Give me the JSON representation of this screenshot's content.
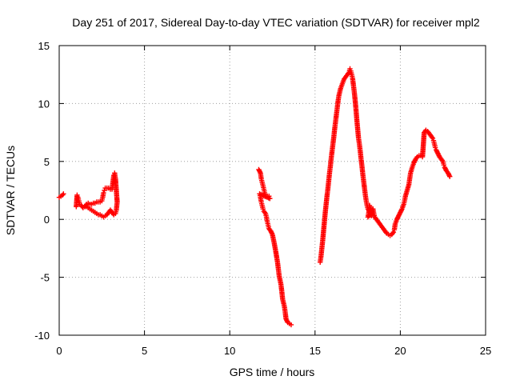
{
  "chart_data": {
    "type": "scatter",
    "title": "Day 251 of 2017, Sidereal Day-to-day VTEC variation (SDTVAR) for receiver mpl2",
    "xlabel": "GPS time / hours",
    "ylabel": "SDTVAR / TECUs",
    "xlim": [
      0,
      25
    ],
    "ylim": [
      -10,
      15
    ],
    "xticks": [
      0,
      5,
      10,
      15,
      20,
      25
    ],
    "yticks": [
      -10,
      -5,
      0,
      5,
      10,
      15
    ],
    "xtick_labels": [
      "0",
      "5",
      "10",
      "15",
      "20",
      "25"
    ],
    "ytick_labels": [
      "-10",
      "-5",
      "0",
      "5",
      "10",
      "15"
    ],
    "grid": true,
    "marker": "+",
    "color": "#ff0000",
    "series": [
      {
        "name": "SDTVAR",
        "segments": [
          [
            [
              0.0,
              1.9
            ],
            [
              0.1,
              2.0
            ],
            [
              0.2,
              2.1
            ],
            [
              0.25,
              2.2
            ]
          ],
          [
            [
              1.0,
              1.1
            ],
            [
              1.05,
              2.1
            ],
            [
              1.1,
              1.9
            ],
            [
              1.15,
              1.6
            ],
            [
              1.2,
              1.3
            ],
            [
              1.3,
              1.2
            ],
            [
              1.4,
              1.0
            ],
            [
              1.5,
              1.1
            ],
            [
              1.6,
              1.3
            ],
            [
              1.7,
              1.4
            ],
            [
              1.8,
              1.3
            ],
            [
              1.9,
              1.3
            ],
            [
              2.0,
              1.4
            ],
            [
              2.1,
              1.4
            ],
            [
              2.2,
              1.5
            ],
            [
              2.3,
              1.5
            ],
            [
              2.4,
              1.5
            ],
            [
              2.5,
              1.6
            ],
            [
              2.55,
              1.9
            ],
            [
              2.6,
              2.3
            ],
            [
              2.65,
              2.5
            ],
            [
              2.7,
              2.7
            ],
            [
              2.8,
              2.7
            ],
            [
              2.9,
              2.7
            ],
            [
              3.0,
              2.6
            ],
            [
              3.1,
              2.6
            ],
            [
              3.15,
              3.2
            ],
            [
              3.2,
              3.8
            ],
            [
              3.25,
              4.0
            ],
            [
              3.3,
              3.5
            ],
            [
              3.35,
              2.5
            ],
            [
              3.4,
              1.5
            ],
            [
              3.35,
              0.8
            ],
            [
              3.3,
              0.5
            ],
            [
              3.2,
              0.4
            ],
            [
              3.1,
              0.6
            ],
            [
              3.0,
              0.8
            ],
            [
              2.9,
              0.6
            ],
            [
              2.8,
              0.4
            ],
            [
              2.7,
              0.3
            ],
            [
              2.6,
              0.2
            ],
            [
              2.5,
              0.3
            ],
            [
              2.4,
              0.4
            ],
            [
              2.3,
              0.4
            ],
            [
              2.2,
              0.5
            ],
            [
              2.1,
              0.6
            ],
            [
              2.0,
              0.7
            ],
            [
              1.9,
              0.8
            ],
            [
              1.8,
              0.9
            ],
            [
              1.7,
              1.0
            ],
            [
              1.6,
              1.1
            ],
            [
              1.5,
              1.1
            ]
          ],
          [
            [
              11.7,
              4.3
            ],
            [
              11.8,
              4.0
            ],
            [
              11.85,
              3.5
            ],
            [
              11.9,
              3.2
            ],
            [
              11.95,
              2.9
            ],
            [
              12.0,
              2.6
            ],
            [
              12.05,
              2.3
            ],
            [
              12.1,
              2.0
            ],
            [
              12.2,
              2.0
            ],
            [
              12.3,
              2.0
            ],
            [
              12.35,
              1.8
            ],
            [
              11.75,
              2.2
            ],
            [
              11.8,
              1.9
            ],
            [
              11.85,
              1.5
            ],
            [
              11.9,
              1.2
            ],
            [
              11.95,
              0.9
            ],
            [
              12.0,
              0.7
            ],
            [
              12.1,
              0.5
            ],
            [
              12.15,
              0.2
            ],
            [
              12.2,
              -0.2
            ],
            [
              12.25,
              -0.5
            ],
            [
              12.3,
              -0.8
            ],
            [
              12.4,
              -1.0
            ],
            [
              12.5,
              -1.3
            ],
            [
              12.6,
              -2.0
            ],
            [
              12.7,
              -2.8
            ],
            [
              12.8,
              -3.7
            ],
            [
              12.85,
              -4.3
            ],
            [
              12.9,
              -4.9
            ],
            [
              13.0,
              -5.6
            ],
            [
              13.05,
              -6.2
            ],
            [
              13.1,
              -6.9
            ],
            [
              13.2,
              -7.5
            ],
            [
              13.25,
              -8.0
            ],
            [
              13.3,
              -8.6
            ],
            [
              13.4,
              -8.9
            ],
            [
              13.5,
              -9.0
            ],
            [
              13.6,
              -9.1
            ]
          ],
          [
            [
              15.3,
              -3.7
            ],
            [
              15.35,
              -3.2
            ],
            [
              15.4,
              -2.5
            ],
            [
              15.45,
              -1.8
            ],
            [
              15.5,
              -1.0
            ],
            [
              15.55,
              -0.2
            ],
            [
              15.6,
              0.6
            ],
            [
              15.65,
              1.3
            ],
            [
              15.7,
              2.0
            ],
            [
              15.75,
              2.6
            ],
            [
              15.8,
              3.3
            ],
            [
              15.85,
              4.0
            ],
            [
              15.9,
              4.6
            ],
            [
              15.95,
              5.3
            ],
            [
              16.0,
              5.9
            ],
            [
              16.05,
              6.5
            ],
            [
              16.1,
              7.1
            ],
            [
              16.15,
              7.8
            ],
            [
              16.2,
              8.4
            ],
            [
              16.25,
              9.0
            ],
            [
              16.3,
              9.6
            ],
            [
              16.35,
              10.2
            ],
            [
              16.4,
              10.7
            ],
            [
              16.5,
              11.3
            ],
            [
              16.6,
              11.7
            ],
            [
              16.7,
              12.1
            ],
            [
              16.8,
              12.3
            ],
            [
              16.9,
              12.5
            ],
            [
              17.0,
              12.7
            ],
            [
              17.05,
              13.0
            ],
            [
              17.1,
              12.8
            ],
            [
              17.15,
              12.5
            ],
            [
              17.2,
              12.2
            ],
            [
              17.25,
              11.6
            ],
            [
              17.3,
              11.0
            ],
            [
              17.35,
              10.3
            ],
            [
              17.4,
              9.5
            ],
            [
              17.45,
              8.6
            ],
            [
              17.5,
              7.8
            ],
            [
              17.55,
              7.0
            ],
            [
              17.6,
              6.5
            ],
            [
              17.65,
              5.9
            ],
            [
              17.7,
              5.2
            ],
            [
              17.75,
              4.6
            ],
            [
              17.8,
              3.9
            ],
            [
              17.85,
              3.3
            ],
            [
              17.9,
              2.7
            ],
            [
              17.95,
              2.1
            ],
            [
              18.0,
              1.6
            ],
            [
              18.05,
              1.2
            ],
            [
              18.1,
              0.9
            ],
            [
              18.2,
              0.7
            ],
            [
              18.3,
              0.5
            ],
            [
              18.1,
              0.2
            ],
            [
              18.15,
              0.6
            ],
            [
              18.2,
              1.2
            ],
            [
              18.25,
              0.8
            ],
            [
              18.3,
              0.3
            ],
            [
              18.4,
              0.9
            ],
            [
              18.45,
              0.5
            ],
            [
              18.5,
              0.2
            ],
            [
              18.6,
              0.0
            ],
            [
              18.7,
              -0.2
            ],
            [
              18.8,
              -0.4
            ],
            [
              18.9,
              -0.6
            ],
            [
              19.0,
              -0.8
            ],
            [
              19.1,
              -1.0
            ],
            [
              19.2,
              -1.2
            ],
            [
              19.3,
              -1.3
            ],
            [
              19.4,
              -1.4
            ],
            [
              19.5,
              -1.3
            ],
            [
              19.6,
              -1.1
            ],
            [
              19.65,
              -0.9
            ],
            [
              19.7,
              -0.4
            ],
            [
              19.8,
              0.0
            ],
            [
              19.9,
              0.3
            ],
            [
              20.0,
              0.6
            ],
            [
              20.1,
              0.9
            ],
            [
              20.2,
              1.3
            ],
            [
              20.25,
              1.6
            ],
            [
              20.3,
              2.0
            ],
            [
              20.4,
              2.5
            ],
            [
              20.5,
              3.0
            ],
            [
              20.55,
              3.5
            ],
            [
              20.6,
              4.0
            ],
            [
              20.7,
              4.5
            ],
            [
              20.8,
              4.9
            ],
            [
              20.9,
              5.2
            ],
            [
              21.0,
              5.4
            ],
            [
              21.1,
              5.5
            ],
            [
              21.2,
              5.5
            ],
            [
              21.3,
              5.4
            ],
            [
              21.4,
              7.5
            ],
            [
              21.5,
              7.7
            ],
            [
              21.6,
              7.6
            ],
            [
              21.7,
              7.4
            ],
            [
              21.8,
              7.2
            ],
            [
              21.9,
              7.0
            ],
            [
              21.95,
              6.8
            ],
            [
              22.0,
              6.5
            ],
            [
              22.05,
              6.2
            ],
            [
              22.1,
              6.0
            ],
            [
              22.2,
              5.7
            ],
            [
              22.3,
              5.4
            ],
            [
              22.4,
              5.2
            ],
            [
              22.5,
              5.0
            ],
            [
              22.55,
              4.7
            ],
            [
              22.6,
              4.5
            ],
            [
              22.7,
              4.2
            ],
            [
              22.8,
              4.0
            ],
            [
              22.9,
              3.7
            ]
          ]
        ]
      }
    ]
  }
}
